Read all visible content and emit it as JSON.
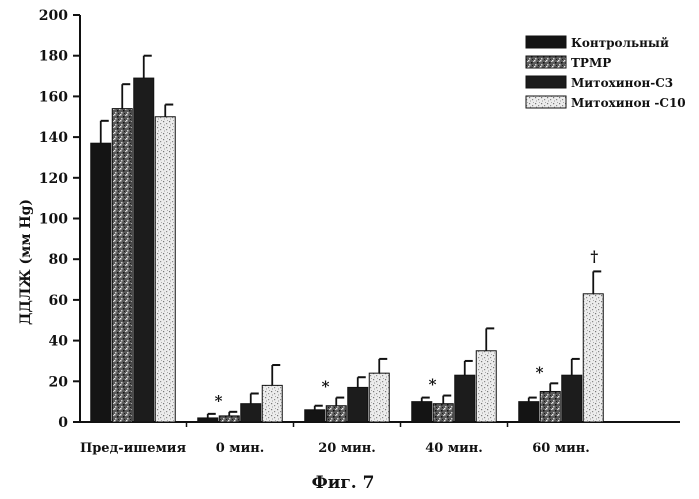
{
  "chart_data": {
    "type": "bar",
    "ylabel": "ДДЛЖ (мм Hg)",
    "ylim": [
      0,
      200
    ],
    "yticks": [
      "0",
      "20",
      "40",
      "60",
      "80",
      "100",
      "120",
      "140",
      "160",
      "180",
      "200"
    ],
    "categories": [
      "Пред-ишемия",
      "0 мин.",
      "20 мин.",
      "40 мин.",
      "60 мин."
    ],
    "series": [
      {
        "name": "Контрольный",
        "values": [
          137,
          2,
          6,
          10,
          10
        ],
        "errors": [
          11,
          2,
          2,
          2,
          2
        ],
        "color": "#141414",
        "pattern": "solid"
      },
      {
        "name": "TPMP",
        "values": [
          154,
          3,
          8,
          9,
          15
        ],
        "errors": [
          12,
          2,
          4,
          4,
          4
        ],
        "color": "#6a6a6a",
        "pattern": "dark-speckle"
      },
      {
        "name": "Митохинон-C3",
        "values": [
          169,
          9,
          17,
          23,
          23
        ],
        "errors": [
          11,
          5,
          5,
          7,
          8
        ],
        "color": "#1c1c1c",
        "pattern": "solid"
      },
      {
        "name": "Митохинон -C10",
        "values": [
          150,
          18,
          24,
          35,
          63
        ],
        "errors": [
          6,
          10,
          7,
          11,
          11
        ],
        "color": "#e4e4e4",
        "pattern": "light-speckle"
      }
    ],
    "annotations": [
      {
        "category": "0 мин.",
        "text": "*"
      },
      {
        "category": "20 мин.",
        "text": "*"
      },
      {
        "category": "40 мин.",
        "text": "*"
      },
      {
        "category": "60 мин.",
        "text": "*"
      },
      {
        "category": "60 мин.",
        "series": "Митохинон -C10",
        "text": "†"
      }
    ],
    "legend_position": "top-right",
    "grid": false
  },
  "caption": "Фиг. 7"
}
